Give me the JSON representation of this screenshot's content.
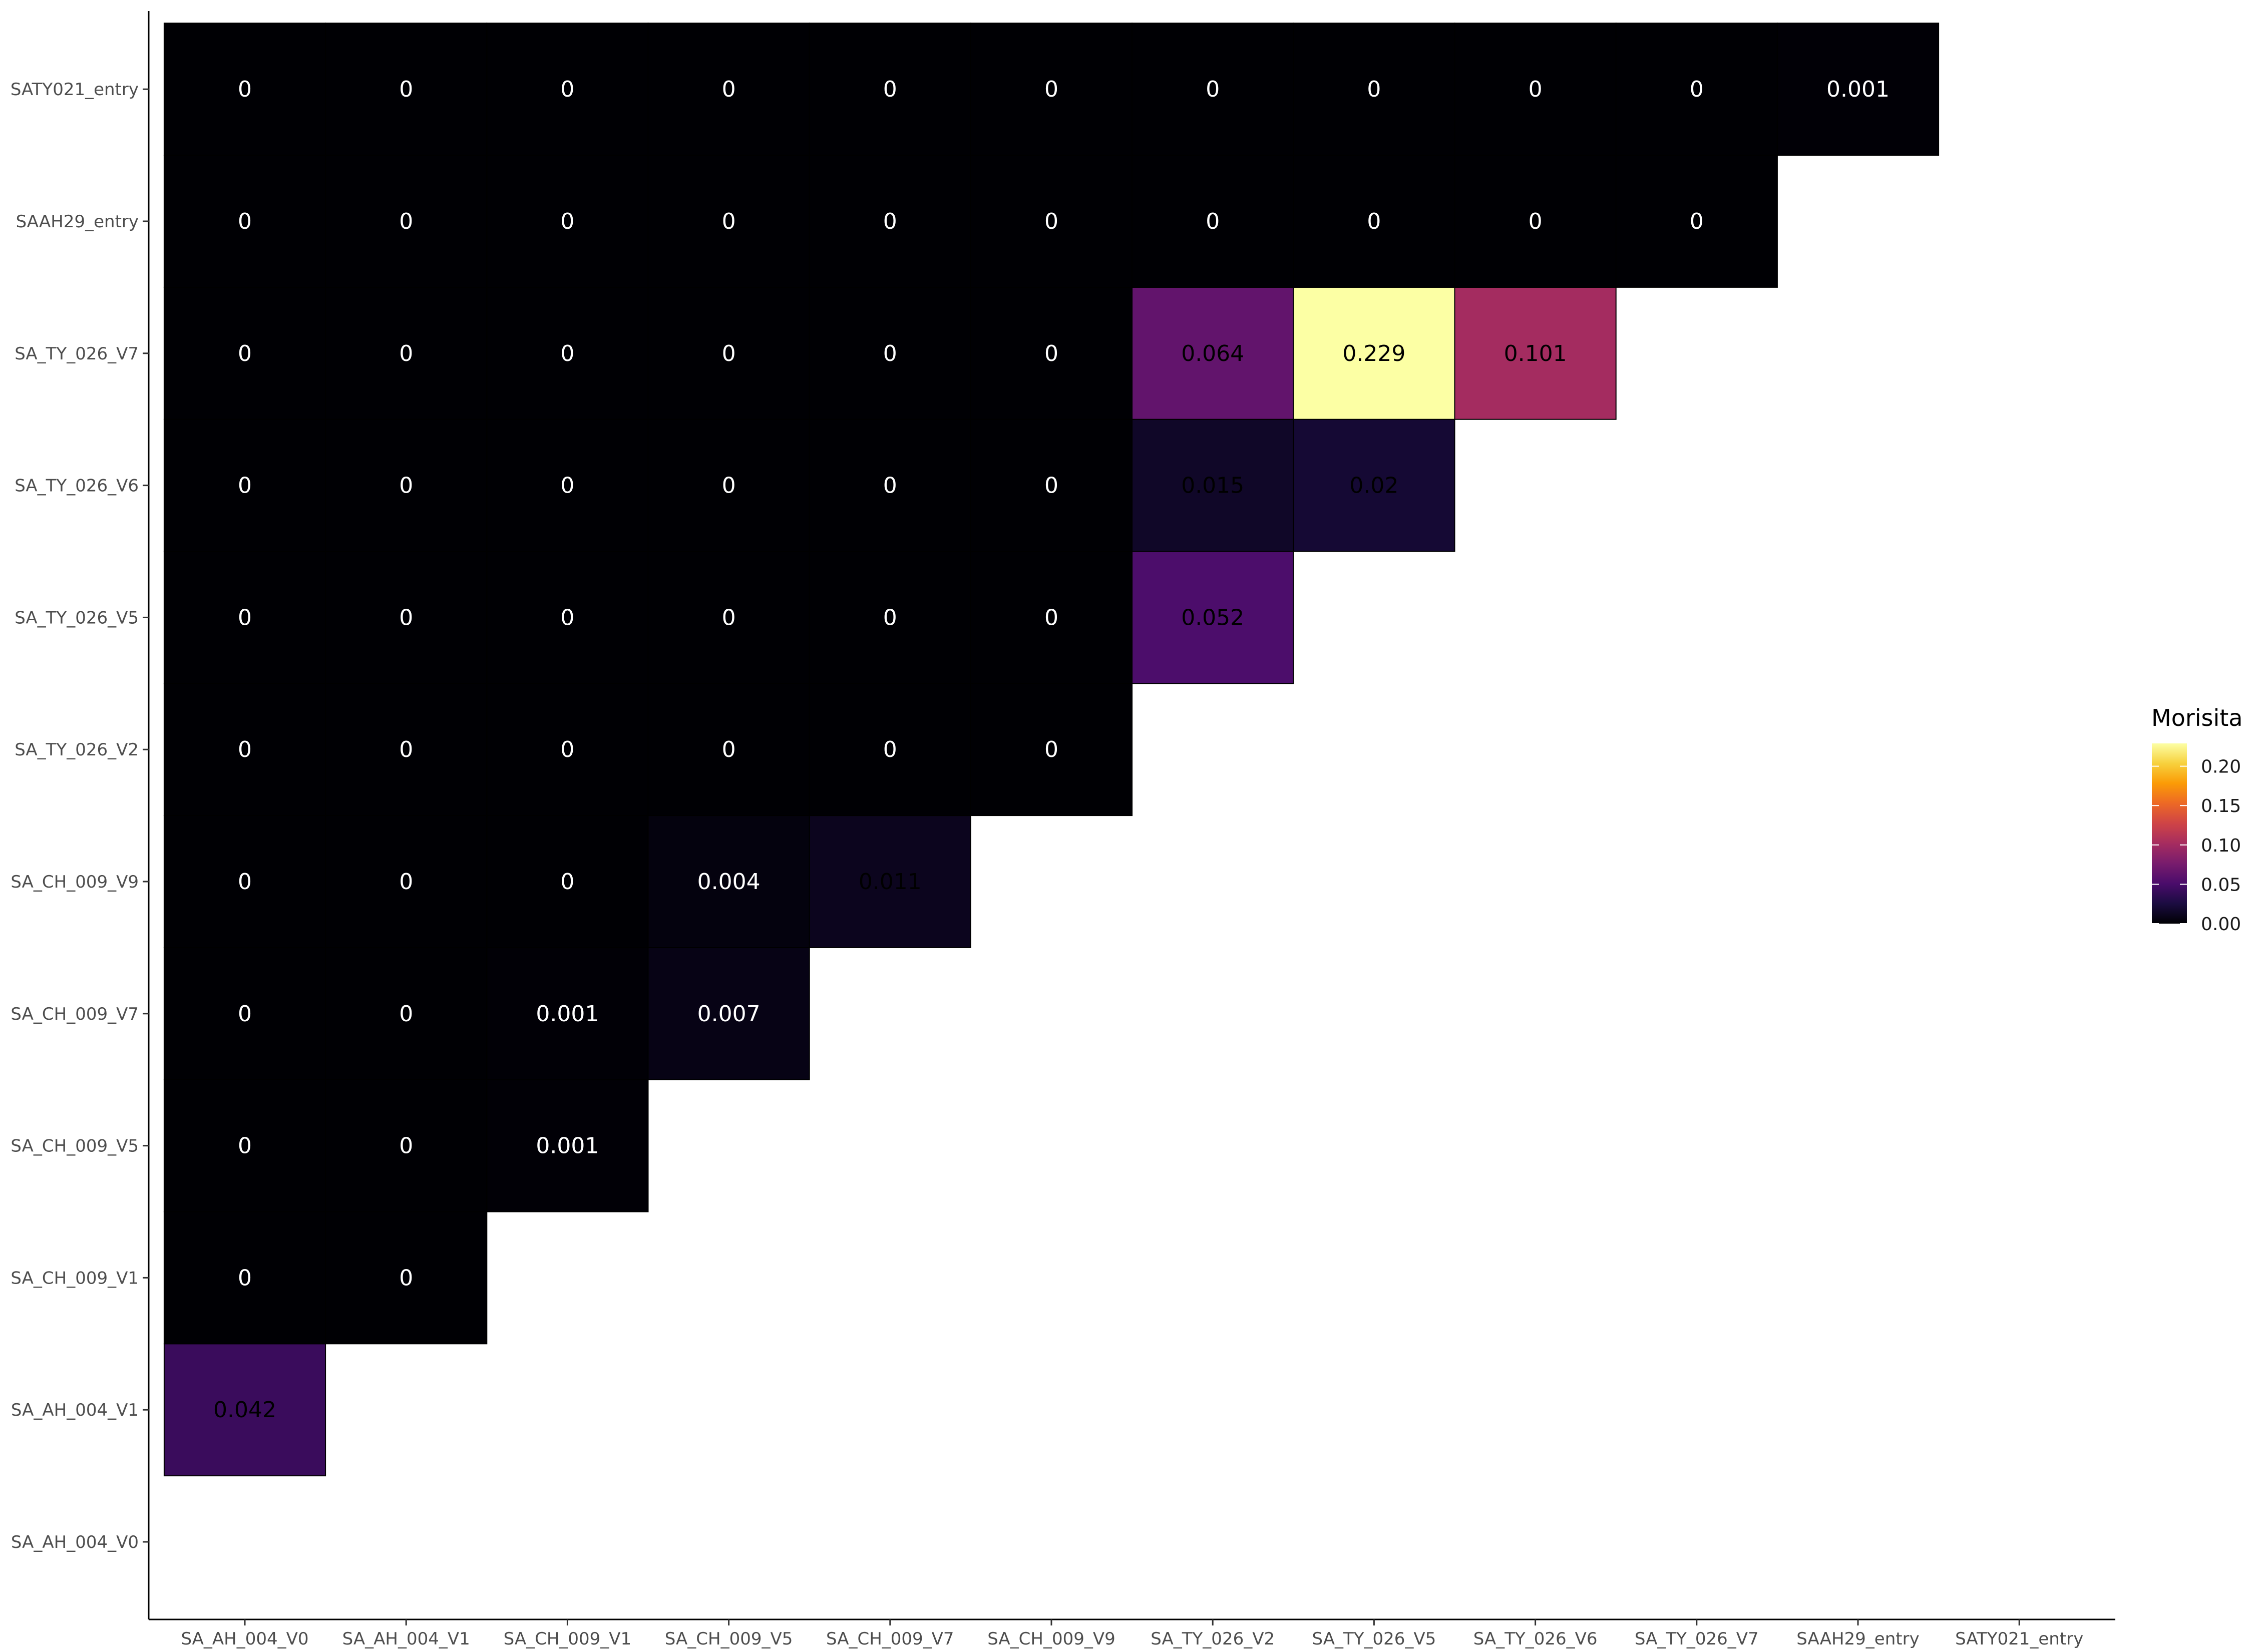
{
  "chart_data": {
    "type": "heatmap",
    "title": "",
    "xlabel": "",
    "ylabel": "",
    "x_categories": [
      "SA_AH_004_V0",
      "SA_AH_004_V1",
      "SA_CH_009_V1",
      "SA_CH_009_V5",
      "SA_CH_009_V7",
      "SA_CH_009_V9",
      "SA_TY_026_V2",
      "SA_TY_026_V5",
      "SA_TY_026_V6",
      "SA_TY_026_V7",
      "SAAH29_entry",
      "SATY021_entry"
    ],
    "y_categories": [
      "SA_AH_004_V0",
      "SA_AH_004_V1",
      "SA_CH_009_V1",
      "SA_CH_009_V5",
      "SA_CH_009_V7",
      "SA_CH_009_V9",
      "SA_TY_026_V2",
      "SA_TY_026_V5",
      "SA_TY_026_V6",
      "SA_TY_026_V7",
      "SAAH29_entry",
      "SATY021_entry"
    ],
    "cells": [
      {
        "x": "SA_AH_004_V0",
        "y": "SA_AH_004_V1",
        "value": 0.042,
        "label": "0.042"
      },
      {
        "x": "SA_AH_004_V0",
        "y": "SA_CH_009_V1",
        "value": 0,
        "label": "0"
      },
      {
        "x": "SA_AH_004_V1",
        "y": "SA_CH_009_V1",
        "value": 0,
        "label": "0"
      },
      {
        "x": "SA_AH_004_V0",
        "y": "SA_CH_009_V5",
        "value": 0,
        "label": "0"
      },
      {
        "x": "SA_AH_004_V1",
        "y": "SA_CH_009_V5",
        "value": 0,
        "label": "0"
      },
      {
        "x": "SA_CH_009_V1",
        "y": "SA_CH_009_V5",
        "value": 0.001,
        "label": "0.001"
      },
      {
        "x": "SA_AH_004_V0",
        "y": "SA_CH_009_V7",
        "value": 0,
        "label": "0"
      },
      {
        "x": "SA_AH_004_V1",
        "y": "SA_CH_009_V7",
        "value": 0,
        "label": "0"
      },
      {
        "x": "SA_CH_009_V1",
        "y": "SA_CH_009_V7",
        "value": 0.001,
        "label": "0.001"
      },
      {
        "x": "SA_CH_009_V5",
        "y": "SA_CH_009_V7",
        "value": 0.007,
        "label": "0.007"
      },
      {
        "x": "SA_AH_004_V0",
        "y": "SA_CH_009_V9",
        "value": 0,
        "label": "0"
      },
      {
        "x": "SA_AH_004_V1",
        "y": "SA_CH_009_V9",
        "value": 0,
        "label": "0"
      },
      {
        "x": "SA_CH_009_V1",
        "y": "SA_CH_009_V9",
        "value": 0,
        "label": "0"
      },
      {
        "x": "SA_CH_009_V5",
        "y": "SA_CH_009_V9",
        "value": 0.004,
        "label": "0.004"
      },
      {
        "x": "SA_CH_009_V7",
        "y": "SA_CH_009_V9",
        "value": 0.011,
        "label": "0.011"
      },
      {
        "x": "SA_AH_004_V0",
        "y": "SA_TY_026_V2",
        "value": 0,
        "label": "0"
      },
      {
        "x": "SA_AH_004_V1",
        "y": "SA_TY_026_V2",
        "value": 0,
        "label": "0"
      },
      {
        "x": "SA_CH_009_V1",
        "y": "SA_TY_026_V2",
        "value": 0,
        "label": "0"
      },
      {
        "x": "SA_CH_009_V5",
        "y": "SA_TY_026_V2",
        "value": 0,
        "label": "0"
      },
      {
        "x": "SA_CH_009_V7",
        "y": "SA_TY_026_V2",
        "value": 0,
        "label": "0"
      },
      {
        "x": "SA_CH_009_V9",
        "y": "SA_TY_026_V2",
        "value": 0,
        "label": "0"
      },
      {
        "x": "SA_AH_004_V0",
        "y": "SA_TY_026_V5",
        "value": 0,
        "label": "0"
      },
      {
        "x": "SA_AH_004_V1",
        "y": "SA_TY_026_V5",
        "value": 0,
        "label": "0"
      },
      {
        "x": "SA_CH_009_V1",
        "y": "SA_TY_026_V5",
        "value": 0,
        "label": "0"
      },
      {
        "x": "SA_CH_009_V5",
        "y": "SA_TY_026_V5",
        "value": 0,
        "label": "0"
      },
      {
        "x": "SA_CH_009_V7",
        "y": "SA_TY_026_V5",
        "value": 0,
        "label": "0"
      },
      {
        "x": "SA_CH_009_V9",
        "y": "SA_TY_026_V5",
        "value": 0,
        "label": "0"
      },
      {
        "x": "SA_TY_026_V2",
        "y": "SA_TY_026_V5",
        "value": 0.052,
        "label": "0.052"
      },
      {
        "x": "SA_AH_004_V0",
        "y": "SA_TY_026_V6",
        "value": 0,
        "label": "0"
      },
      {
        "x": "SA_AH_004_V1",
        "y": "SA_TY_026_V6",
        "value": 0,
        "label": "0"
      },
      {
        "x": "SA_CH_009_V1",
        "y": "SA_TY_026_V6",
        "value": 0,
        "label": "0"
      },
      {
        "x": "SA_CH_009_V5",
        "y": "SA_TY_026_V6",
        "value": 0,
        "label": "0"
      },
      {
        "x": "SA_CH_009_V7",
        "y": "SA_TY_026_V6",
        "value": 0,
        "label": "0"
      },
      {
        "x": "SA_CH_009_V9",
        "y": "SA_TY_026_V6",
        "value": 0,
        "label": "0"
      },
      {
        "x": "SA_TY_026_V2",
        "y": "SA_TY_026_V6",
        "value": 0.015,
        "label": "0.015"
      },
      {
        "x": "SA_TY_026_V5",
        "y": "SA_TY_026_V6",
        "value": 0.02,
        "label": "0.02"
      },
      {
        "x": "SA_AH_004_V0",
        "y": "SA_TY_026_V7",
        "value": 0,
        "label": "0"
      },
      {
        "x": "SA_AH_004_V1",
        "y": "SA_TY_026_V7",
        "value": 0,
        "label": "0"
      },
      {
        "x": "SA_CH_009_V1",
        "y": "SA_TY_026_V7",
        "value": 0,
        "label": "0"
      },
      {
        "x": "SA_CH_009_V5",
        "y": "SA_TY_026_V7",
        "value": 0,
        "label": "0"
      },
      {
        "x": "SA_CH_009_V7",
        "y": "SA_TY_026_V7",
        "value": 0,
        "label": "0"
      },
      {
        "x": "SA_CH_009_V9",
        "y": "SA_TY_026_V7",
        "value": 0,
        "label": "0"
      },
      {
        "x": "SA_TY_026_V2",
        "y": "SA_TY_026_V7",
        "value": 0.064,
        "label": "0.064"
      },
      {
        "x": "SA_TY_026_V5",
        "y": "SA_TY_026_V7",
        "value": 0.229,
        "label": "0.229"
      },
      {
        "x": "SA_TY_026_V6",
        "y": "SA_TY_026_V7",
        "value": 0.101,
        "label": "0.101"
      },
      {
        "x": "SA_AH_004_V0",
        "y": "SAAH29_entry",
        "value": 0,
        "label": "0"
      },
      {
        "x": "SA_AH_004_V1",
        "y": "SAAH29_entry",
        "value": 0,
        "label": "0"
      },
      {
        "x": "SA_CH_009_V1",
        "y": "SAAH29_entry",
        "value": 0,
        "label": "0"
      },
      {
        "x": "SA_CH_009_V5",
        "y": "SAAH29_entry",
        "value": 0,
        "label": "0"
      },
      {
        "x": "SA_CH_009_V7",
        "y": "SAAH29_entry",
        "value": 0,
        "label": "0"
      },
      {
        "x": "SA_CH_009_V9",
        "y": "SAAH29_entry",
        "value": 0,
        "label": "0"
      },
      {
        "x": "SA_TY_026_V2",
        "y": "SAAH29_entry",
        "value": 0,
        "label": "0"
      },
      {
        "x": "SA_TY_026_V5",
        "y": "SAAH29_entry",
        "value": 0,
        "label": "0"
      },
      {
        "x": "SA_TY_026_V6",
        "y": "SAAH29_entry",
        "value": 0,
        "label": "0"
      },
      {
        "x": "SA_TY_026_V7",
        "y": "SAAH29_entry",
        "value": 0,
        "label": "0"
      },
      {
        "x": "SA_AH_004_V0",
        "y": "SATY021_entry",
        "value": 0,
        "label": "0"
      },
      {
        "x": "SA_AH_004_V1",
        "y": "SATY021_entry",
        "value": 0,
        "label": "0"
      },
      {
        "x": "SA_CH_009_V1",
        "y": "SATY021_entry",
        "value": 0,
        "label": "0"
      },
      {
        "x": "SA_CH_009_V5",
        "y": "SATY021_entry",
        "value": 0,
        "label": "0"
      },
      {
        "x": "SA_CH_009_V7",
        "y": "SATY021_entry",
        "value": 0,
        "label": "0"
      },
      {
        "x": "SA_CH_009_V9",
        "y": "SATY021_entry",
        "value": 0,
        "label": "0"
      },
      {
        "x": "SA_TY_026_V2",
        "y": "SATY021_entry",
        "value": 0,
        "label": "0"
      },
      {
        "x": "SA_TY_026_V5",
        "y": "SATY021_entry",
        "value": 0,
        "label": "0"
      },
      {
        "x": "SA_TY_026_V6",
        "y": "SATY021_entry",
        "value": 0,
        "label": "0"
      },
      {
        "x": "SA_TY_026_V7",
        "y": "SATY021_entry",
        "value": 0,
        "label": "0"
      },
      {
        "x": "SAAH29_entry",
        "y": "SATY021_entry",
        "value": 0.001,
        "label": "0.001"
      }
    ],
    "legend": {
      "title": "Morisita",
      "min": 0,
      "max": 0.229,
      "ticks": [
        0,
        0.05,
        0.1,
        0.15,
        0.2
      ],
      "tick_labels": [
        "0.00",
        "0.05",
        "0.10",
        "0.15",
        "0.20"
      ],
      "placement": "right",
      "colorscale": "inferno",
      "colorscale_stops": [
        "#000004",
        "#1b0c41",
        "#4a0c6b",
        "#781c6d",
        "#a52c60",
        "#cf4446",
        "#ed6925",
        "#fb9b06",
        "#f7d13d",
        "#fcffa4"
      ]
    },
    "grid": false
  }
}
